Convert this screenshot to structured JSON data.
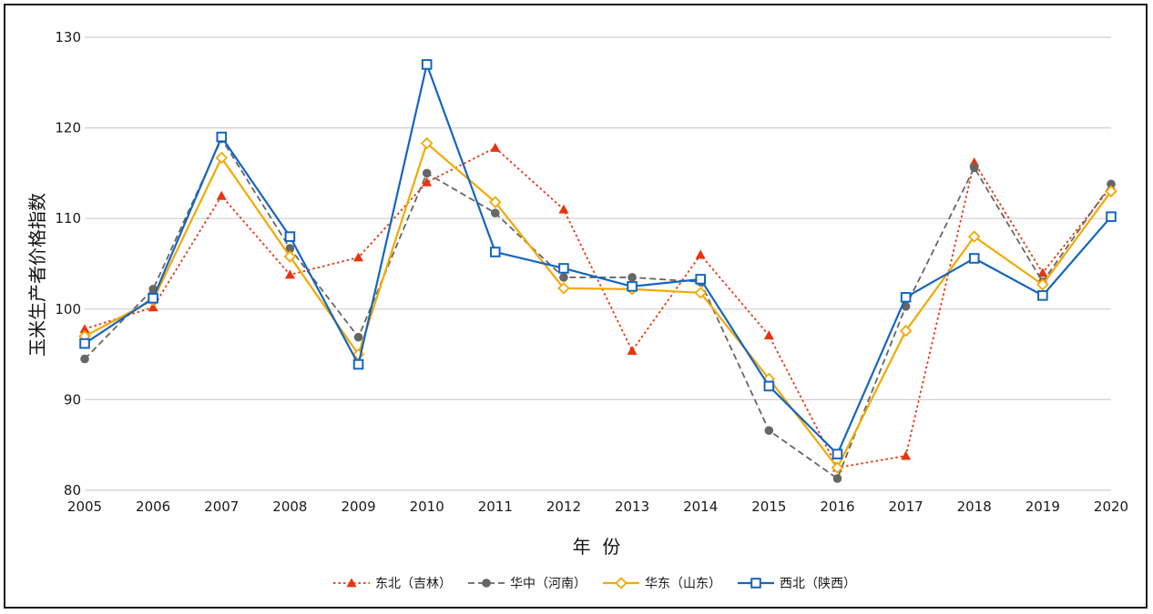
{
  "chart_data": {
    "type": "line",
    "xlabel": "年  份",
    "ylabel": "玉米生产者价格指数",
    "x": [
      "2005",
      "2006",
      "2007",
      "2008",
      "2009",
      "2010",
      "2011",
      "2012",
      "2013",
      "2014",
      "2015",
      "2016",
      "2017",
      "2018",
      "2019",
      "2020"
    ],
    "ylim": [
      80,
      130
    ],
    "yticks": [
      80,
      90,
      100,
      110,
      120,
      130
    ],
    "grid": true,
    "legend_position": "bottom",
    "series": [
      {
        "name": "东北（吉林）",
        "color": "#e8340f",
        "line_style": "dotted",
        "marker": "triangle",
        "values": [
          97.8,
          100.2,
          112.5,
          103.8,
          105.7,
          114.0,
          117.8,
          111.0,
          95.4,
          106.0,
          97.1,
          82.5,
          83.8,
          116.2,
          104.0,
          113.5
        ]
      },
      {
        "name": "华中（河南）",
        "color": "#666666",
        "line_style": "dashed",
        "marker": "circle",
        "values": [
          94.5,
          102.2,
          118.8,
          106.7,
          96.9,
          115.0,
          110.6,
          103.5,
          103.5,
          103.0,
          86.6,
          81.3,
          100.3,
          115.6,
          103.0,
          113.8
        ]
      },
      {
        "name": "华东（山东）",
        "color": "#f2a900",
        "line_style": "solid",
        "marker": "diamond",
        "values": [
          97.0,
          101.0,
          116.7,
          105.8,
          95.0,
          118.3,
          111.8,
          102.3,
          102.2,
          101.8,
          92.3,
          82.5,
          97.6,
          108.0,
          102.7,
          113.0
        ]
      },
      {
        "name": "西北（陕西）",
        "color": "#1565c0",
        "line_style": "solid",
        "marker": "square",
        "values": [
          96.2,
          101.2,
          119.0,
          108.0,
          93.9,
          127.0,
          106.3,
          104.5,
          102.5,
          103.3,
          91.5,
          84.0,
          101.3,
          105.6,
          101.5,
          110.2
        ]
      }
    ]
  }
}
